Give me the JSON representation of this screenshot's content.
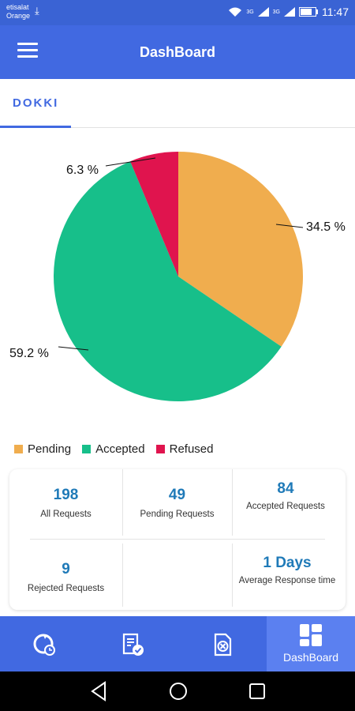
{
  "status_bar": {
    "carrier_line1": "etisalat",
    "carrier_line2": "Orange",
    "download_icon": "download-icon",
    "signal_1": "3G",
    "signal_2": "3G",
    "time": "11:47"
  },
  "app_bar": {
    "title": "DashBoard",
    "menu_icon": "hamburger-menu-icon"
  },
  "tabs": [
    {
      "label": "DOKKI",
      "active": true
    }
  ],
  "chart_data": {
    "type": "pie",
    "labels": [
      "Pending",
      "Accepted",
      "Refused"
    ],
    "values": [
      34.5,
      59.2,
      6.3
    ],
    "value_labels": [
      "34.5 %",
      "59.2 %",
      "6.3 %"
    ],
    "colors": [
      "#f0ad4e",
      "#17bf8a",
      "#e0144e"
    ],
    "legend_position": "bottom-left"
  },
  "stats": {
    "all_requests": {
      "value": "198",
      "label": "All Requests"
    },
    "pending_requests": {
      "value": "49",
      "label": "Pending Requests"
    },
    "accepted_requests": {
      "value": "84",
      "label": "Accepted Requests"
    },
    "rejected_requests": {
      "value": "9",
      "label": "Rejected Requests"
    },
    "average_response": {
      "value": "1 Days",
      "label": "Average Response time"
    }
  },
  "bottom_nav": {
    "items": [
      {
        "icon": "refresh-clock-icon",
        "label": ""
      },
      {
        "icon": "document-check-icon",
        "label": ""
      },
      {
        "icon": "document-cancel-icon",
        "label": ""
      },
      {
        "icon": "dashboard-grid-icon",
        "label": "DashBoard",
        "active": true
      }
    ]
  },
  "colors": {
    "primary": "#4169e1",
    "status_bar": "#3a63d4",
    "stat_value": "#1f7ab8"
  }
}
